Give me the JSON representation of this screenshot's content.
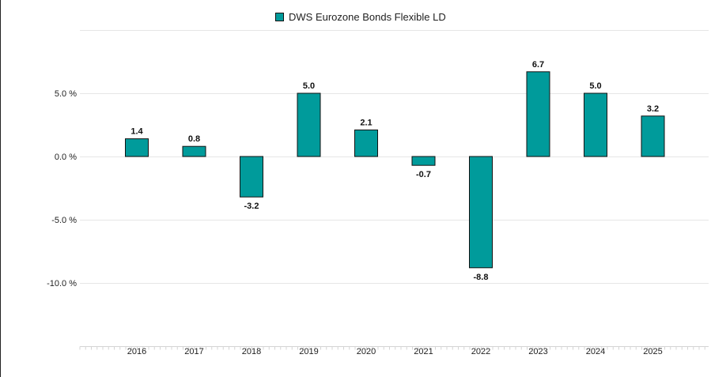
{
  "chart_data": {
    "type": "bar",
    "categories": [
      "2016",
      "2017",
      "2018",
      "2019",
      "2020",
      "2021",
      "2022",
      "2023",
      "2024",
      "2025"
    ],
    "series": [
      {
        "name": "DWS Eurozone Bonds Flexible LD",
        "values": [
          1.4,
          0.8,
          -3.2,
          5.0,
          2.1,
          -0.7,
          -8.8,
          6.7,
          5.0,
          3.2
        ],
        "labels": [
          "1.4",
          "0.8",
          "-3.2",
          "5.0",
          "2.1",
          "-0.7",
          "-8.8",
          "6.7",
          "5.0",
          "3.2"
        ],
        "color": "#009b9b"
      }
    ],
    "y_ticks": [
      5,
      0,
      -5,
      -10
    ],
    "y_tick_labels": [
      "5.0 %",
      "0.0 %",
      "-5.0 %",
      "-10.0 %"
    ],
    "ylim": [
      -15,
      10
    ],
    "grid": true,
    "legend": "top-center"
  }
}
